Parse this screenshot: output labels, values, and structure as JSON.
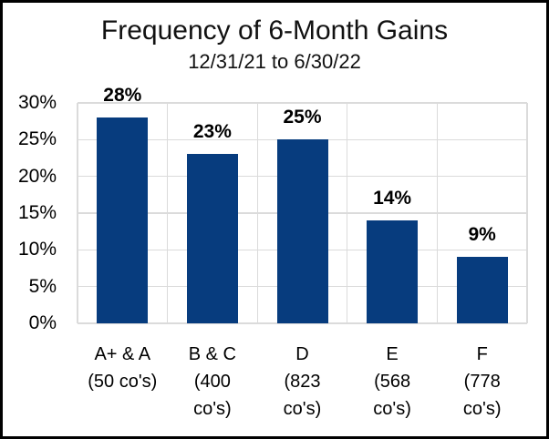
{
  "chart_data": {
    "type": "bar",
    "title": "Frequency of 6-Month Gains",
    "subtitle": "12/31/21 to 6/30/22",
    "categories": [
      "A+ & A (50 co's)",
      "B & C (400 co's)",
      "D (823 co's)",
      "E (568 co's)",
      "F (778 co's)"
    ],
    "category_label_lines": [
      [
        "A+ & A",
        "(50 co's)"
      ],
      [
        "B & C",
        "(400",
        "co's)"
      ],
      [
        "D",
        "(823",
        "co's)"
      ],
      [
        "E",
        "(568",
        "co's)"
      ],
      [
        "F",
        "(778",
        "co's)"
      ]
    ],
    "values": [
      28,
      23,
      25,
      14,
      9
    ],
    "value_labels": [
      "28%",
      "23%",
      "25%",
      "14%",
      "9%"
    ],
    "xlabel": "",
    "ylabel": "",
    "ylim": [
      0,
      30
    ],
    "yticks": [
      0,
      5,
      10,
      15,
      20,
      25,
      30
    ],
    "ytick_labels": [
      "0%",
      "5%",
      "10%",
      "15%",
      "20%",
      "25%",
      "30%"
    ],
    "grid": true,
    "legend": false,
    "colors": {
      "bar": "#073C7E",
      "gridline": "#DBDBDB",
      "text": "#000000",
      "title_text": "#111111",
      "background": "#FFFFFF",
      "frame_border": "#000000"
    }
  }
}
